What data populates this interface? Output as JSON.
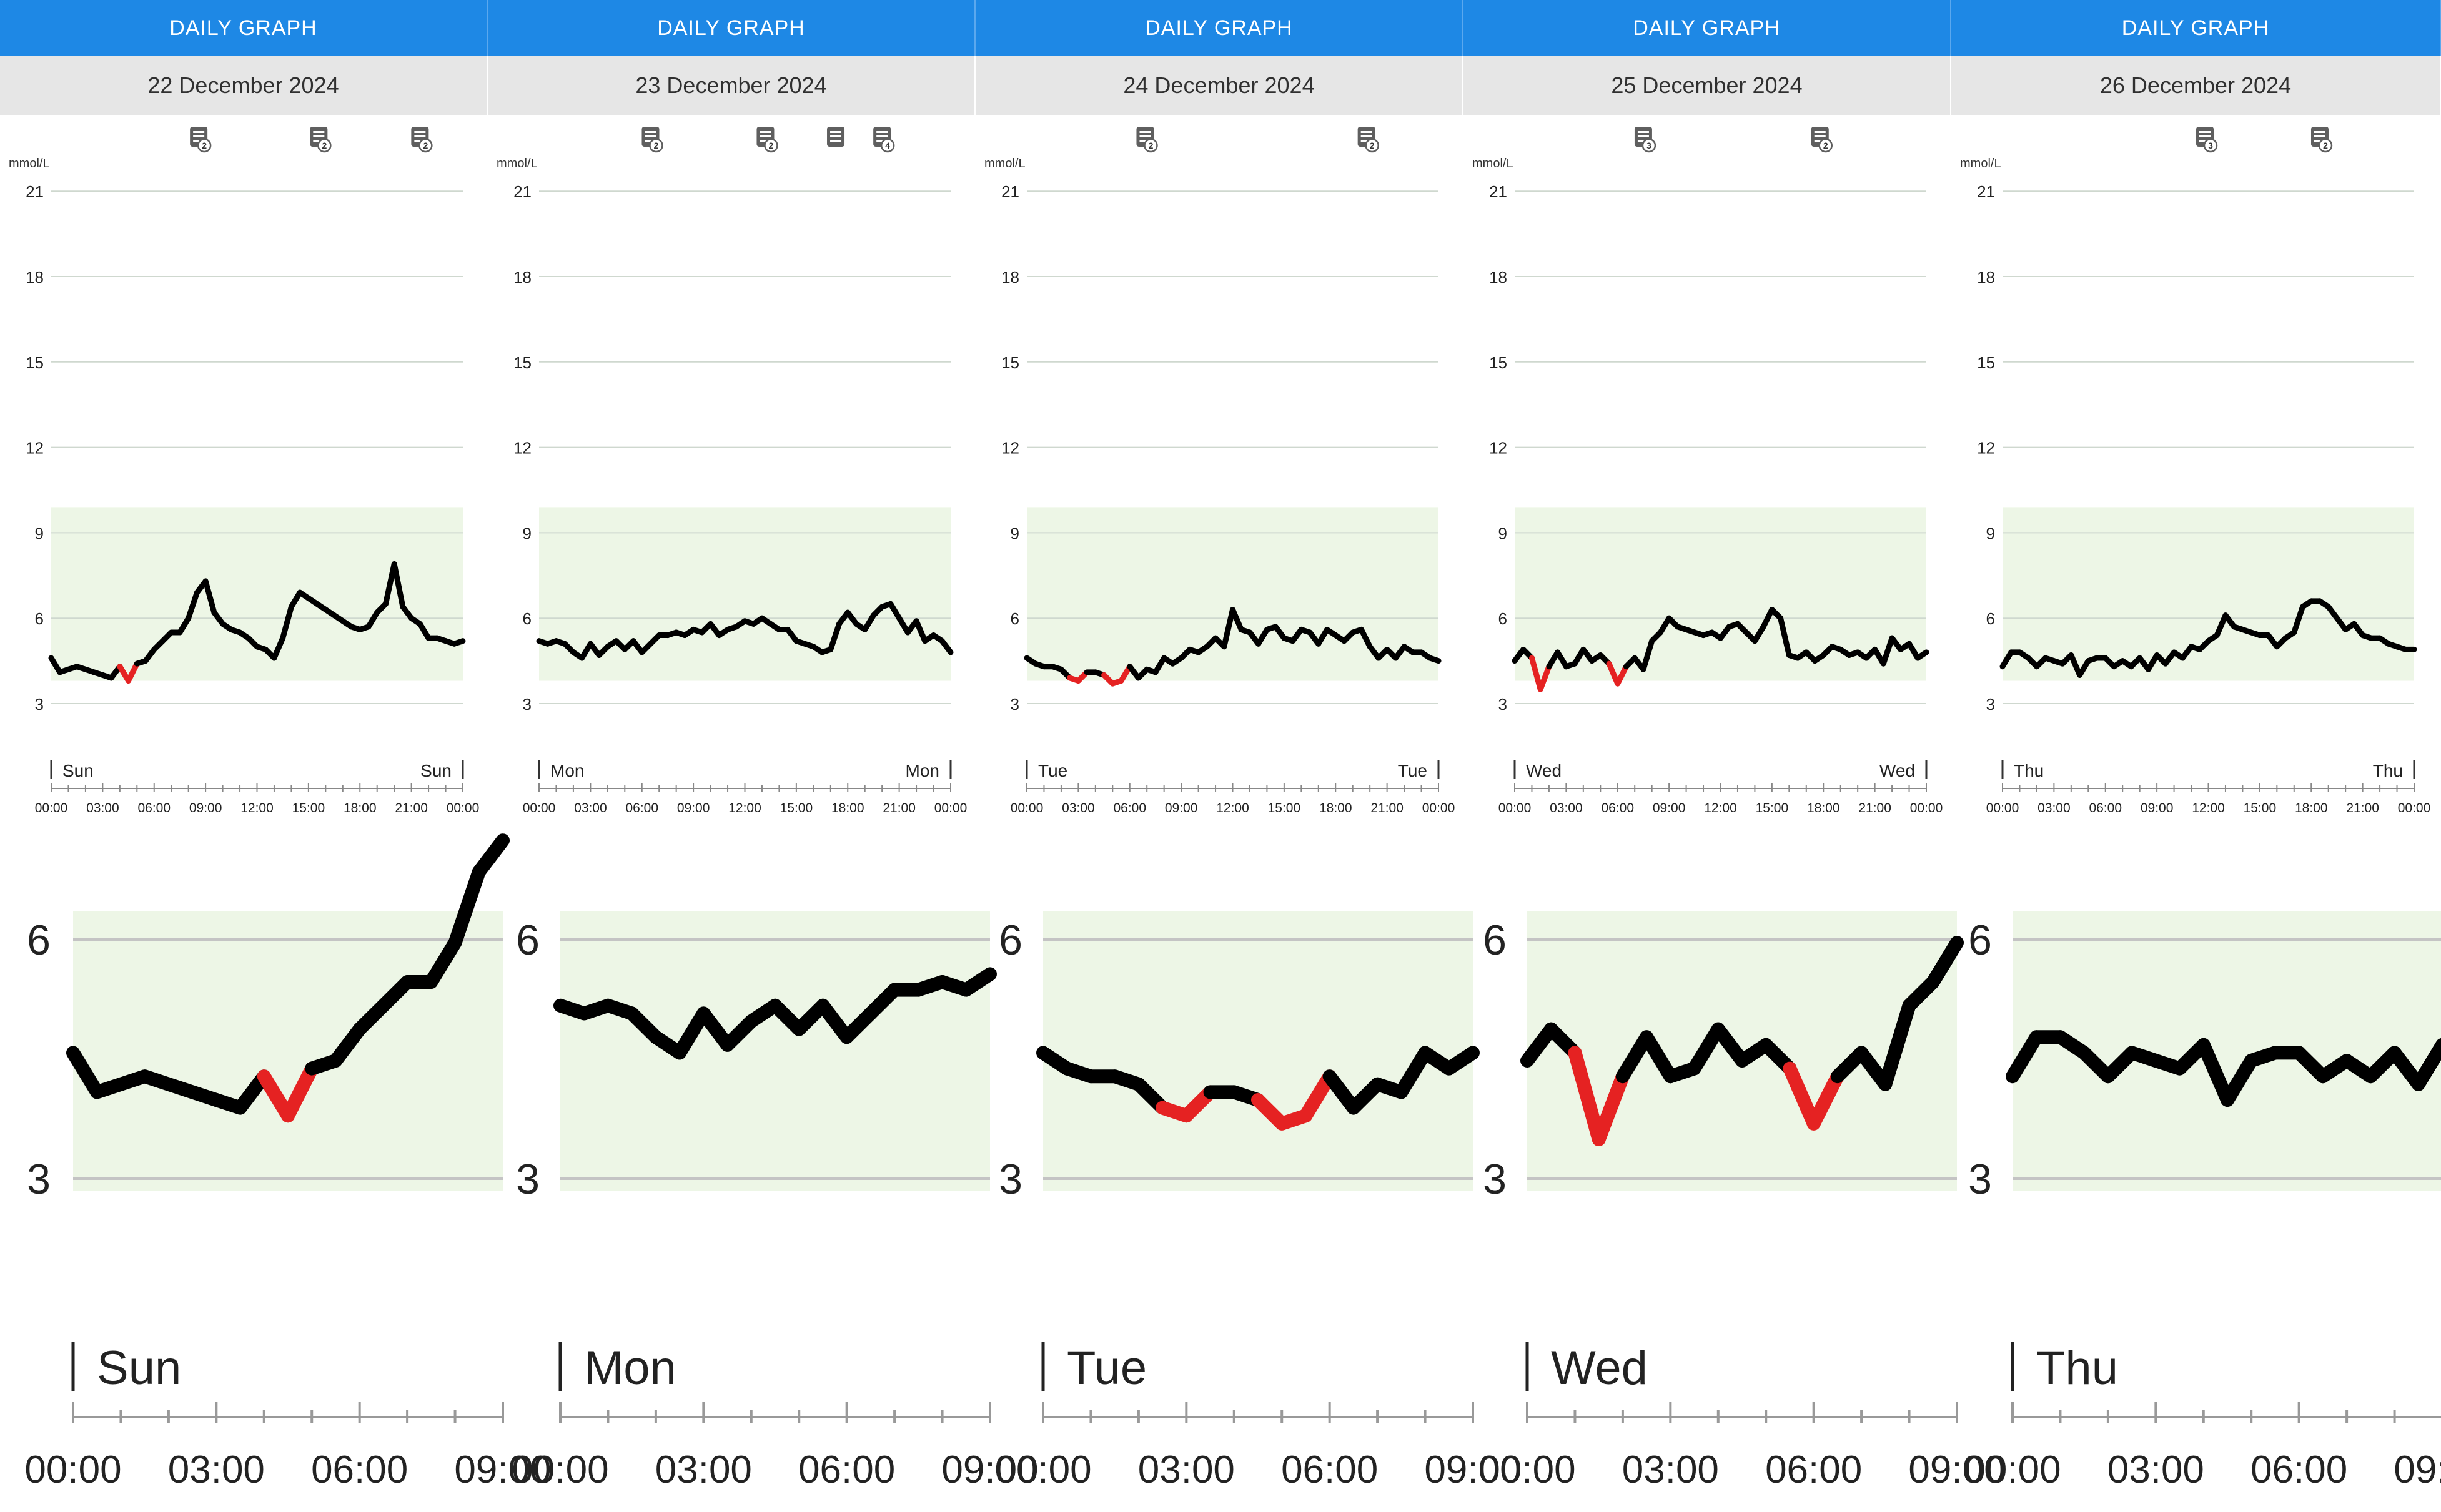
{
  "panel_title": "DAILY GRAPH",
  "colors": {
    "header": "#1e88e5",
    "target_band": "#edf6e6",
    "line": "#000000",
    "low": "#e52222"
  },
  "icons": {
    "note": "note-icon"
  },
  "chart_data": [
    {
      "type": "line",
      "date": "22 December 2024",
      "ylabel": "mmol/L",
      "ylim": [
        0,
        21
      ],
      "yticks": [
        3,
        6,
        9,
        12,
        15,
        18,
        21
      ],
      "target_range": [
        3.8,
        9.9
      ],
      "low_threshold": 3.9,
      "day_label": "Sun",
      "xticks": [
        "00:00",
        "03:00",
        "06:00",
        "09:00",
        "12:00",
        "15:00",
        "18:00",
        "21:00",
        "00:00"
      ],
      "note_markers": [
        {
          "time": 8.6,
          "count": "2"
        },
        {
          "time": 15.6,
          "count": "2"
        },
        {
          "time": 21.5,
          "count": "2"
        }
      ],
      "x": [
        0,
        0.5,
        1,
        1.5,
        2,
        2.5,
        3,
        3.5,
        4,
        4.5,
        5,
        5.5,
        6,
        6.5,
        7,
        7.5,
        8,
        8.5,
        9,
        9.5,
        10,
        10.5,
        11,
        11.5,
        12,
        12.5,
        13,
        13.5,
        14,
        14.5,
        15,
        15.5,
        16,
        16.5,
        17,
        17.5,
        18,
        18.5,
        19,
        19.5,
        20,
        20.5,
        21,
        21.5,
        22,
        22.5,
        23,
        23.5,
        24
      ],
      "y": [
        4.6,
        4.1,
        4.2,
        4.3,
        4.2,
        4.1,
        4.0,
        3.9,
        4.3,
        3.8,
        4.4,
        4.5,
        4.9,
        5.2,
        5.5,
        5.5,
        6.0,
        6.9,
        7.3,
        6.2,
        5.8,
        5.6,
        5.5,
        5.3,
        5.0,
        4.9,
        4.6,
        5.3,
        6.4,
        6.9,
        6.7,
        6.5,
        6.3,
        6.1,
        5.9,
        5.7,
        5.6,
        5.7,
        6.2,
        6.5,
        7.9,
        6.4,
        6.0,
        5.8,
        5.3,
        5.3,
        5.2,
        5.1,
        5.2
      ]
    },
    {
      "type": "line",
      "date": "23 December 2024",
      "ylabel": "mmol/L",
      "ylim": [
        0,
        21
      ],
      "yticks": [
        3,
        6,
        9,
        12,
        15,
        18,
        21
      ],
      "target_range": [
        3.8,
        9.9
      ],
      "low_threshold": 3.9,
      "day_label": "Mon",
      "xticks": [
        "00:00",
        "03:00",
        "06:00",
        "09:00",
        "12:00",
        "15:00",
        "18:00",
        "21:00",
        "00:00"
      ],
      "note_markers": [
        {
          "time": 6.5,
          "count": "2"
        },
        {
          "time": 13.2,
          "count": "2"
        },
        {
          "time": 17.3,
          "count": ""
        },
        {
          "time": 20.0,
          "count": "4"
        }
      ],
      "x": [
        0,
        0.5,
        1,
        1.5,
        2,
        2.5,
        3,
        3.5,
        4,
        4.5,
        5,
        5.5,
        6,
        6.5,
        7,
        7.5,
        8,
        8.5,
        9,
        9.5,
        10,
        10.5,
        11,
        11.5,
        12,
        12.5,
        13,
        13.5,
        14,
        14.5,
        15,
        15.5,
        16,
        16.5,
        17,
        17.5,
        18,
        18.5,
        19,
        19.5,
        20,
        20.5,
        21,
        21.5,
        22,
        22.5,
        23,
        23.5,
        24
      ],
      "y": [
        5.2,
        5.1,
        5.2,
        5.1,
        4.8,
        4.6,
        5.1,
        4.7,
        5.0,
        5.2,
        4.9,
        5.2,
        4.8,
        5.1,
        5.4,
        5.4,
        5.5,
        5.4,
        5.6,
        5.5,
        5.8,
        5.4,
        5.6,
        5.7,
        5.9,
        5.8,
        6.0,
        5.8,
        5.6,
        5.6,
        5.2,
        5.1,
        5.0,
        4.8,
        4.9,
        5.8,
        6.2,
        5.8,
        5.6,
        6.1,
        6.4,
        6.5,
        6.0,
        5.5,
        5.9,
        5.2,
        5.4,
        5.2,
        4.8
      ]
    },
    {
      "type": "line",
      "date": "24 December 2024",
      "ylabel": "mmol/L",
      "ylim": [
        0,
        21
      ],
      "yticks": [
        3,
        6,
        9,
        12,
        15,
        18,
        21
      ],
      "target_range": [
        3.8,
        9.9
      ],
      "low_threshold": 3.9,
      "day_label": "Tue",
      "xticks": [
        "00:00",
        "03:00",
        "06:00",
        "09:00",
        "12:00",
        "15:00",
        "18:00",
        "21:00",
        "00:00"
      ],
      "note_markers": [
        {
          "time": 6.9,
          "count": "2"
        },
        {
          "time": 19.8,
          "count": "2"
        }
      ],
      "x": [
        0,
        0.5,
        1,
        1.5,
        2,
        2.5,
        3,
        3.5,
        4,
        4.5,
        5,
        5.5,
        6,
        6.5,
        7,
        7.5,
        8,
        8.5,
        9,
        9.5,
        10,
        10.5,
        11,
        11.5,
        12,
        12.5,
        13,
        13.5,
        14,
        14.5,
        15,
        15.5,
        16,
        16.5,
        17,
        17.5,
        18,
        18.5,
        19,
        19.5,
        20,
        20.5,
        21,
        21.5,
        22,
        22.5,
        23,
        23.5,
        24
      ],
      "y": [
        4.6,
        4.4,
        4.3,
        4.3,
        4.2,
        3.9,
        3.8,
        4.1,
        4.1,
        4.0,
        3.7,
        3.8,
        4.3,
        3.9,
        4.2,
        4.1,
        4.6,
        4.4,
        4.6,
        4.9,
        4.8,
        5.0,
        5.3,
        5.0,
        6.3,
        5.6,
        5.5,
        5.1,
        5.6,
        5.7,
        5.3,
        5.2,
        5.6,
        5.5,
        5.1,
        5.6,
        5.4,
        5.2,
        5.5,
        5.6,
        5.0,
        4.6,
        4.9,
        4.6,
        5.0,
        4.8,
        4.8,
        4.6,
        4.5
      ]
    },
    {
      "type": "line",
      "date": "25 December 2024",
      "ylabel": "mmol/L",
      "ylim": [
        0,
        21
      ],
      "yticks": [
        3,
        6,
        9,
        12,
        15,
        18,
        21
      ],
      "target_range": [
        3.8,
        9.9
      ],
      "low_threshold": 3.9,
      "day_label": "Wed",
      "xticks": [
        "00:00",
        "03:00",
        "06:00",
        "09:00",
        "12:00",
        "15:00",
        "18:00",
        "21:00",
        "00:00"
      ],
      "note_markers": [
        {
          "time": 7.5,
          "count": "3"
        },
        {
          "time": 17.8,
          "count": "2"
        }
      ],
      "x": [
        0,
        0.5,
        1,
        1.5,
        2,
        2.5,
        3,
        3.5,
        4,
        4.5,
        5,
        5.5,
        6,
        6.5,
        7,
        7.5,
        8,
        8.5,
        9,
        9.5,
        10,
        10.5,
        11,
        11.5,
        12,
        12.5,
        13,
        13.5,
        14,
        14.5,
        15,
        15.5,
        16,
        16.5,
        17,
        17.5,
        18,
        18.5,
        19,
        19.5,
        20,
        20.5,
        21,
        21.5,
        22,
        22.5,
        23,
        23.5,
        24
      ],
      "y": [
        4.5,
        4.9,
        4.6,
        3.5,
        4.3,
        4.8,
        4.3,
        4.4,
        4.9,
        4.5,
        4.7,
        4.4,
        3.7,
        4.3,
        4.6,
        4.2,
        5.2,
        5.5,
        6.0,
        5.7,
        5.6,
        5.5,
        5.4,
        5.5,
        5.3,
        5.7,
        5.8,
        5.5,
        5.2,
        5.7,
        6.3,
        6.0,
        4.7,
        4.6,
        4.8,
        4.5,
        4.7,
        5.0,
        4.9,
        4.7,
        4.8,
        4.6,
        4.9,
        4.4,
        5.3,
        4.9,
        5.1,
        4.6,
        4.8
      ]
    },
    {
      "type": "line",
      "date": "26 December 2024",
      "ylabel": "mmol/L",
      "ylim": [
        0,
        21
      ],
      "yticks": [
        3,
        6,
        9,
        12,
        15,
        18,
        21
      ],
      "target_range": [
        3.8,
        9.9
      ],
      "low_threshold": 3.9,
      "day_label": "Thu",
      "xticks": [
        "00:00",
        "03:00",
        "06:00",
        "09:00",
        "12:00",
        "15:00",
        "18:00",
        "21:00",
        "00:00"
      ],
      "note_markers": [
        {
          "time": 11.8,
          "count": "3"
        },
        {
          "time": 18.5,
          "count": "2"
        }
      ],
      "x": [
        0,
        0.5,
        1,
        1.5,
        2,
        2.5,
        3,
        3.5,
        4,
        4.5,
        5,
        5.5,
        6,
        6.5,
        7,
        7.5,
        8,
        8.5,
        9,
        9.5,
        10,
        10.5,
        11,
        11.5,
        12,
        12.5,
        13,
        13.5,
        14,
        14.5,
        15,
        15.5,
        16,
        16.5,
        17,
        17.5,
        18,
        18.5,
        19,
        19.5,
        20,
        20.5,
        21,
        21.5,
        22,
        22.5,
        23,
        23.5,
        24
      ],
      "y": [
        4.3,
        4.8,
        4.8,
        4.6,
        4.3,
        4.6,
        4.5,
        4.4,
        4.7,
        4.0,
        4.5,
        4.6,
        4.6,
        4.3,
        4.5,
        4.3,
        4.6,
        4.2,
        4.7,
        4.4,
        4.8,
        4.6,
        5.0,
        4.9,
        5.2,
        5.4,
        6.1,
        5.7,
        5.6,
        5.5,
        5.4,
        5.4,
        5.0,
        5.3,
        5.5,
        6.4,
        6.6,
        6.6,
        6.4,
        6.0,
        5.6,
        5.8,
        5.4,
        5.3,
        5.3,
        5.1,
        5.0,
        4.9,
        4.9
      ]
    }
  ]
}
